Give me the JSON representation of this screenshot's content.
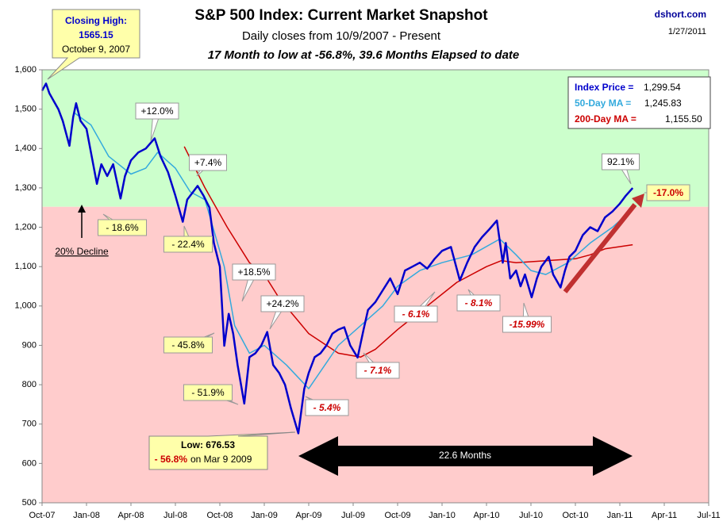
{
  "chart_data": {
    "type": "line",
    "title": "S&P 500 Index: Current Market Snapshot",
    "subtitle": "Daily closes from 10/9/2007 - Present",
    "subtitle2": "17 Month to low at -56.8%,  39.6 Months Elapsed to date",
    "source": "dshort.com",
    "date": "1/27/2011",
    "xlim": [
      0,
      45
    ],
    "xticks": [
      {
        "value": 0,
        "label": "Oct-07"
      },
      {
        "value": 3,
        "label": "Jan-08"
      },
      {
        "value": 6,
        "label": "Apr-08"
      },
      {
        "value": 9,
        "label": "Jul-08"
      },
      {
        "value": 12,
        "label": "Oct-08"
      },
      {
        "value": 15,
        "label": "Jan-09"
      },
      {
        "value": 18,
        "label": "Apr-09"
      },
      {
        "value": 21,
        "label": "Jul-09"
      },
      {
        "value": 24,
        "label": "Oct-09"
      },
      {
        "value": 27,
        "label": "Jan-10"
      },
      {
        "value": 30,
        "label": "Apr-10"
      },
      {
        "value": 33,
        "label": "Jul-10"
      },
      {
        "value": 36,
        "label": "Oct-10"
      },
      {
        "value": 39,
        "label": "Jan-11"
      },
      {
        "value": 42,
        "label": "Apr-11"
      },
      {
        "value": 45,
        "label": "Jul-11"
      }
    ],
    "ylim": [
      500,
      1600
    ],
    "yticks": [
      500,
      600,
      700,
      800,
      900,
      {
        "value": 1000,
        "label": "1,000"
      },
      {
        "value": 1100,
        "label": "1,100"
      },
      {
        "value": 1200,
        "label": "1,200"
      },
      {
        "value": 1300,
        "label": "1,300"
      },
      {
        "value": 1400,
        "label": "1,400"
      },
      {
        "value": 1500,
        "label": "1,500"
      },
      {
        "value": 1600,
        "label": "1,600"
      }
    ],
    "background_bands": [
      {
        "from": 1252,
        "to": 1600,
        "color": "#ccffcc"
      },
      {
        "from": 500,
        "to": 1252,
        "color": "#ffcccc"
      }
    ],
    "series": [
      {
        "name": "Index Price =",
        "value_label": "1,299.54",
        "color": "#0000cc",
        "width": 2.5,
        "x": [
          0.0,
          0.27,
          0.5,
          0.8,
          1.1,
          1.4,
          1.85,
          2.1,
          2.3,
          2.6,
          3.0,
          3.3,
          3.7,
          4.0,
          4.4,
          4.8,
          5.3,
          5.6,
          6.0,
          6.5,
          7.0,
          7.6,
          8.0,
          8.5,
          9.0,
          9.5,
          9.8,
          10.2,
          10.5,
          10.9,
          11.3,
          11.6,
          12.0,
          12.3,
          12.6,
          12.9,
          13.2,
          13.65,
          14.0,
          14.4,
          14.8,
          15.2,
          15.6,
          16.0,
          16.4,
          16.8,
          17.3,
          17.7,
          18.0,
          18.4,
          18.8,
          19.2,
          19.6,
          20.0,
          20.4,
          20.8,
          21.3,
          21.7,
          22.0,
          22.5,
          23.0,
          23.5,
          24.0,
          24.5,
          25.0,
          25.5,
          26.0,
          26.5,
          27.0,
          27.6,
          28.2,
          28.7,
          29.2,
          29.7,
          30.2,
          30.7,
          31.1,
          31.3,
          31.6,
          32.0,
          32.3,
          32.6,
          33.05,
          33.4,
          33.7,
          34.2,
          34.5,
          35.0,
          35.3,
          35.6,
          36.0,
          36.5,
          37.0,
          37.5,
          38.0,
          38.5,
          39.0,
          39.4,
          39.87
        ],
        "values": [
          1547,
          1565,
          1540,
          1520,
          1500,
          1470,
          1407,
          1480,
          1515,
          1470,
          1450,
          1390,
          1310,
          1360,
          1330,
          1360,
          1273,
          1330,
          1370,
          1390,
          1400,
          1426,
          1380,
          1340,
          1280,
          1214,
          1270,
          1290,
          1305,
          1280,
          1250,
          1160,
          1100,
          899,
          980,
          930,
          850,
          752,
          870,
          880,
          900,
          934,
          850,
          830,
          800,
          740,
          676.53,
          790,
          830,
          870,
          880,
          900,
          930,
          940,
          946,
          900,
          869,
          940,
          990,
          1010,
          1040,
          1070,
          1030,
          1090,
          1100,
          1110,
          1095,
          1120,
          1140,
          1150,
          1065,
          1110,
          1150,
          1175,
          1195,
          1217,
          1110,
          1160,
          1070,
          1090,
          1050,
          1080,
          1022,
          1070,
          1100,
          1125,
          1080,
          1047,
          1090,
          1125,
          1140,
          1180,
          1200,
          1190,
          1225,
          1240,
          1260,
          1280,
          1299.54
        ]
      },
      {
        "name": "50-Day MA =",
        "value_label": "1,245.83",
        "color": "#33aadd",
        "width": 1.5,
        "x": [
          2.2,
          3.3,
          4.5,
          6.0,
          7.0,
          7.8,
          9.0,
          10.0,
          11.0,
          12.3,
          13.0,
          14.0,
          15.0,
          16.5,
          18.0,
          20.0,
          23.0,
          24.0,
          25.5,
          27.0,
          29.0,
          30.9,
          32.0,
          33.0,
          34.0,
          35.5,
          37.0,
          38.5,
          39.87
        ],
        "values": [
          1490,
          1460,
          1380,
          1335,
          1350,
          1390,
          1350,
          1290,
          1270,
          1100,
          950,
          880,
          900,
          850,
          790,
          900,
          1000,
          1050,
          1090,
          1110,
          1130,
          1170,
          1130,
          1090,
          1080,
          1110,
          1160,
          1200,
          1245.83
        ]
      },
      {
        "name": "200-Day MA =",
        "value_label": "1,155.50",
        "color": "#cc0000",
        "width": 1.5,
        "x": [
          9.6,
          11.0,
          12.5,
          14.0,
          15.0,
          16.0,
          18.0,
          20.0,
          21.5,
          22.5,
          24.0,
          26.0,
          28.0,
          30.0,
          31.0,
          32.0,
          34.0,
          36.0,
          37.0,
          38.0,
          39.87
        ],
        "values": [
          1405,
          1300,
          1200,
          1110,
          1080,
          1020,
          930,
          880,
          870,
          890,
          940,
          1000,
          1060,
          1100,
          1115,
          1110,
          1115,
          1120,
          1130,
          1145,
          1155.5
        ]
      }
    ],
    "high_box": [
      "Closing High:",
      "1565.15",
      "October 9, 2007"
    ],
    "low_box": [
      "Low: 676.53",
      "- 56.8%",
      "on Mar 9 2009"
    ],
    "decline_label": "20% Decline",
    "span_label": "22.6  Months",
    "annotations": [
      {
        "text": "+12.0%",
        "style": "white"
      },
      {
        "text": "+7.4%",
        "style": "white"
      },
      {
        "text": "+18.5%",
        "style": "white"
      },
      {
        "text": "+24.2%",
        "style": "white"
      },
      {
        "text": "92.1%",
        "style": "white"
      },
      {
        "text": "- 18.6%",
        "style": "yellow"
      },
      {
        "text": "- 22.4%",
        "style": "yellow"
      },
      {
        "text": "- 45.8%",
        "style": "yellow"
      },
      {
        "text": "- 51.9%",
        "style": "yellow"
      },
      {
        "text": "- 5.4%",
        "style": "red"
      },
      {
        "text": "- 7.1%",
        "style": "red"
      },
      {
        "text": "- 6.1%",
        "style": "red"
      },
      {
        "text": "- 8.1%",
        "style": "red"
      },
      {
        "text": "-15.99%",
        "style": "red"
      },
      {
        "text": "-17.0%",
        "style": "yellowred"
      }
    ]
  }
}
